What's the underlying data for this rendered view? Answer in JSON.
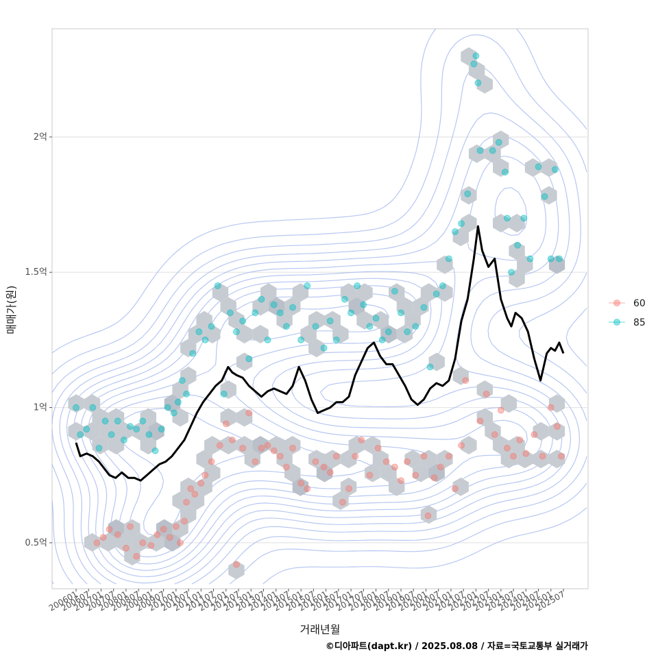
{
  "chart_data": {
    "type": "scatter",
    "xlabel": "거래년월",
    "ylabel": "매매가(원)",
    "caption": "©디아파트(dapt.kr) / 2025.08.08 / 자료=국토교통부 실거래가",
    "x_range": [
      "2006-01",
      "2025-07"
    ],
    "ylim": [
      0.33,
      2.4
    ],
    "grid": true,
    "legend_position": "right",
    "y_ticks": [
      {
        "value": 0.5,
        "label": "0.5억"
      },
      {
        "value": 1.0,
        "label": "1억"
      },
      {
        "value": 1.5,
        "label": "1.5억"
      },
      {
        "value": 2.0,
        "label": "2억"
      }
    ],
    "x_ticks": [
      "200601",
      "200607",
      "200701",
      "200707",
      "200801",
      "200807",
      "200901",
      "200907",
      "201001",
      "201007",
      "201101",
      "201107",
      "201201",
      "201207",
      "201301",
      "201307",
      "201401",
      "201407",
      "201501",
      "201507",
      "201601",
      "201607",
      "201701",
      "201707",
      "201801",
      "201807",
      "201901",
      "201907",
      "202001",
      "202007",
      "202101",
      "202107",
      "202201",
      "202207",
      "202301",
      "202307",
      "202401",
      "202407",
      "202501",
      "202507"
    ],
    "series": [
      {
        "name": "60",
        "color": "#F8766D",
        "points": [
          [
            "2006-11",
            0.5
          ],
          [
            "2007-02",
            0.52
          ],
          [
            "2007-05",
            0.55
          ],
          [
            "2007-09",
            0.53
          ],
          [
            "2008-01",
            0.48
          ],
          [
            "2008-03",
            0.56
          ],
          [
            "2008-06",
            0.45
          ],
          [
            "2008-09",
            0.5
          ],
          [
            "2009-01",
            0.49
          ],
          [
            "2009-04",
            0.53
          ],
          [
            "2009-07",
            0.55
          ],
          [
            "2009-10",
            0.52
          ],
          [
            "2010-01",
            0.56
          ],
          [
            "2010-03",
            0.5
          ],
          [
            "2010-05",
            0.58
          ],
          [
            "2010-06",
            0.65
          ],
          [
            "2010-08",
            0.7
          ],
          [
            "2010-10",
            0.68
          ],
          [
            "2011-01",
            0.72
          ],
          [
            "2011-03",
            0.75
          ],
          [
            "2011-06",
            0.8
          ],
          [
            "2011-10",
            0.86
          ],
          [
            "2012-01",
            0.94
          ],
          [
            "2012-04",
            0.88
          ],
          [
            "2012-06",
            0.42
          ],
          [
            "2012-09",
            0.85
          ],
          [
            "2012-12",
            0.98
          ],
          [
            "2013-03",
            0.8
          ],
          [
            "2013-06",
            0.85
          ],
          [
            "2013-09",
            0.86
          ],
          [
            "2013-12",
            0.84
          ],
          [
            "2014-03",
            0.82
          ],
          [
            "2014-06",
            0.78
          ],
          [
            "2014-09",
            0.85
          ],
          [
            "2015-01",
            0.72
          ],
          [
            "2015-04",
            0.7
          ],
          [
            "2015-08",
            0.8
          ],
          [
            "2015-12",
            0.78
          ],
          [
            "2016-03",
            0.76
          ],
          [
            "2016-06",
            0.82
          ],
          [
            "2016-09",
            0.65
          ],
          [
            "2016-12",
            0.7
          ],
          [
            "2017-03",
            0.82
          ],
          [
            "2017-06",
            0.88
          ],
          [
            "2017-10",
            0.75
          ],
          [
            "2018-02",
            0.85
          ],
          [
            "2018-06",
            0.8
          ],
          [
            "2018-10",
            0.78
          ],
          [
            "2019-01",
            0.73
          ],
          [
            "2019-04",
            0.8
          ],
          [
            "2019-08",
            0.75
          ],
          [
            "2019-12",
            0.82
          ],
          [
            "2020-02",
            0.6
          ],
          [
            "2020-05",
            0.74
          ],
          [
            "2020-08",
            0.78
          ],
          [
            "2020-12",
            0.82
          ],
          [
            "2021-03",
            0.7
          ],
          [
            "2021-06",
            0.86
          ],
          [
            "2021-08",
            1.1
          ],
          [
            "2022-03",
            0.95
          ],
          [
            "2022-06",
            1.05
          ],
          [
            "2022-10",
            0.9
          ],
          [
            "2023-01",
            0.99
          ],
          [
            "2023-04",
            0.85
          ],
          [
            "2023-07",
            0.82
          ],
          [
            "2023-10",
            0.88
          ],
          [
            "2024-01",
            0.83
          ],
          [
            "2024-05",
            0.9
          ],
          [
            "2024-09",
            0.82
          ],
          [
            "2025-01",
            1.0
          ],
          [
            "2025-04",
            0.93
          ],
          [
            "2025-06",
            0.82
          ]
        ]
      },
      {
        "name": "85",
        "color": "#00BFC4",
        "points": [
          [
            "2006-01",
            1.0
          ],
          [
            "2006-03",
            0.9
          ],
          [
            "2006-06",
            0.92
          ],
          [
            "2006-09",
            1.0
          ],
          [
            "2006-12",
            0.85
          ],
          [
            "2007-03",
            0.95
          ],
          [
            "2007-06",
            0.9
          ],
          [
            "2007-09",
            0.95
          ],
          [
            "2007-12",
            0.88
          ],
          [
            "2008-03",
            0.93
          ],
          [
            "2008-06",
            0.92
          ],
          [
            "2008-09",
            0.95
          ],
          [
            "2008-12",
            0.9
          ],
          [
            "2009-03",
            0.84
          ],
          [
            "2009-06",
            0.92
          ],
          [
            "2009-09",
            1.0
          ],
          [
            "2009-12",
            0.98
          ],
          [
            "2010-02",
            1.02
          ],
          [
            "2010-04",
            1.1
          ],
          [
            "2010-06",
            1.05
          ],
          [
            "2010-09",
            1.2
          ],
          [
            "2010-12",
            1.28
          ],
          [
            "2011-03",
            1.25
          ],
          [
            "2011-06",
            1.3
          ],
          [
            "2011-09",
            1.45
          ],
          [
            "2011-12",
            1.05
          ],
          [
            "2012-03",
            1.35
          ],
          [
            "2012-06",
            1.28
          ],
          [
            "2012-09",
            1.32
          ],
          [
            "2012-12",
            1.18
          ],
          [
            "2013-03",
            1.35
          ],
          [
            "2013-06",
            1.4
          ],
          [
            "2013-09",
            1.25
          ],
          [
            "2013-12",
            1.38
          ],
          [
            "2014-03",
            1.35
          ],
          [
            "2014-06",
            1.3
          ],
          [
            "2014-09",
            1.37
          ],
          [
            "2015-01",
            1.25
          ],
          [
            "2015-04",
            1.45
          ],
          [
            "2015-08",
            1.3
          ],
          [
            "2015-12",
            1.22
          ],
          [
            "2016-03",
            1.32
          ],
          [
            "2016-06",
            1.25
          ],
          [
            "2016-10",
            1.4
          ],
          [
            "2017-01",
            1.35
          ],
          [
            "2017-04",
            1.45
          ],
          [
            "2017-07",
            1.38
          ],
          [
            "2017-10",
            1.3
          ],
          [
            "2018-01",
            1.33
          ],
          [
            "2018-04",
            1.25
          ],
          [
            "2018-07",
            1.28
          ],
          [
            "2018-10",
            1.43
          ],
          [
            "2019-01",
            1.35
          ],
          [
            "2019-04",
            1.28
          ],
          [
            "2019-08",
            1.3
          ],
          [
            "2019-12",
            1.37
          ],
          [
            "2020-03",
            1.15
          ],
          [
            "2020-06",
            1.42
          ],
          [
            "2020-09",
            1.45
          ],
          [
            "2020-12",
            1.55
          ],
          [
            "2021-03",
            1.65
          ],
          [
            "2021-06",
            1.68
          ],
          [
            "2021-09",
            1.79
          ],
          [
            "2021-12",
            2.27
          ],
          [
            "2022-01",
            2.3
          ],
          [
            "2022-02",
            2.2
          ],
          [
            "2022-03",
            1.95
          ],
          [
            "2022-09",
            1.95
          ],
          [
            "2022-12",
            1.98
          ],
          [
            "2023-03",
            1.87
          ],
          [
            "2023-04",
            1.7
          ],
          [
            "2023-06",
            1.5
          ],
          [
            "2023-09",
            1.6
          ],
          [
            "2023-12",
            1.7
          ],
          [
            "2024-03",
            1.55
          ],
          [
            "2024-07",
            1.89
          ],
          [
            "2024-10",
            1.78
          ],
          [
            "2025-01",
            1.55
          ],
          [
            "2025-03",
            1.88
          ],
          [
            "2025-05",
            1.55
          ]
        ]
      },
      {
        "name": "",
        "kind": "line",
        "color": "#000000",
        "points": [
          [
            "2006-01",
            0.87
          ],
          [
            "2006-03",
            0.82
          ],
          [
            "2006-06",
            0.83
          ],
          [
            "2006-09",
            0.82
          ],
          [
            "2006-12",
            0.8
          ],
          [
            "2007-02",
            0.78
          ],
          [
            "2007-05",
            0.75
          ],
          [
            "2007-08",
            0.74
          ],
          [
            "2007-11",
            0.76
          ],
          [
            "2008-02",
            0.74
          ],
          [
            "2008-05",
            0.74
          ],
          [
            "2008-08",
            0.73
          ],
          [
            "2008-11",
            0.75
          ],
          [
            "2009-02",
            0.77
          ],
          [
            "2009-05",
            0.79
          ],
          [
            "2009-08",
            0.8
          ],
          [
            "2009-11",
            0.82
          ],
          [
            "2010-02",
            0.85
          ],
          [
            "2010-05",
            0.88
          ],
          [
            "2010-08",
            0.93
          ],
          [
            "2010-11",
            0.98
          ],
          [
            "2011-02",
            1.02
          ],
          [
            "2011-05",
            1.05
          ],
          [
            "2011-08",
            1.08
          ],
          [
            "2011-11",
            1.1
          ],
          [
            "2012-02",
            1.15
          ],
          [
            "2012-04",
            1.13
          ],
          [
            "2012-06",
            1.12
          ],
          [
            "2012-09",
            1.11
          ],
          [
            "2012-12",
            1.08
          ],
          [
            "2013-03",
            1.06
          ],
          [
            "2013-06",
            1.04
          ],
          [
            "2013-09",
            1.06
          ],
          [
            "2013-12",
            1.07
          ],
          [
            "2014-03",
            1.06
          ],
          [
            "2014-06",
            1.05
          ],
          [
            "2014-09",
            1.08
          ],
          [
            "2014-12",
            1.15
          ],
          [
            "2015-03",
            1.1
          ],
          [
            "2015-06",
            1.03
          ],
          [
            "2015-09",
            0.98
          ],
          [
            "2015-12",
            0.99
          ],
          [
            "2016-03",
            1.0
          ],
          [
            "2016-06",
            1.02
          ],
          [
            "2016-09",
            1.02
          ],
          [
            "2016-12",
            1.04
          ],
          [
            "2017-03",
            1.12
          ],
          [
            "2017-06",
            1.17
          ],
          [
            "2017-09",
            1.22
          ],
          [
            "2017-12",
            1.24
          ],
          [
            "2018-03",
            1.19
          ],
          [
            "2018-06",
            1.16
          ],
          [
            "2018-09",
            1.16
          ],
          [
            "2018-12",
            1.12
          ],
          [
            "2019-03",
            1.08
          ],
          [
            "2019-06",
            1.03
          ],
          [
            "2019-09",
            1.01
          ],
          [
            "2019-12",
            1.03
          ],
          [
            "2020-03",
            1.07
          ],
          [
            "2020-06",
            1.09
          ],
          [
            "2020-09",
            1.08
          ],
          [
            "2020-12",
            1.1
          ],
          [
            "2021-03",
            1.18
          ],
          [
            "2021-06",
            1.32
          ],
          [
            "2021-09",
            1.4
          ],
          [
            "2021-12",
            1.55
          ],
          [
            "2022-02",
            1.67
          ],
          [
            "2022-04",
            1.58
          ],
          [
            "2022-07",
            1.52
          ],
          [
            "2022-10",
            1.55
          ],
          [
            "2023-01",
            1.4
          ],
          [
            "2023-04",
            1.33
          ],
          [
            "2023-06",
            1.3
          ],
          [
            "2023-08",
            1.35
          ],
          [
            "2023-11",
            1.33
          ],
          [
            "2024-02",
            1.28
          ],
          [
            "2024-05",
            1.18
          ],
          [
            "2024-08",
            1.1
          ],
          [
            "2024-11",
            1.2
          ],
          [
            "2025-01",
            1.22
          ],
          [
            "2025-03",
            1.21
          ],
          [
            "2025-05",
            1.24
          ],
          [
            "2025-07",
            1.2
          ]
        ]
      }
    ],
    "legend": [
      {
        "label": "60",
        "color": "#F8766D"
      },
      {
        "label": "85",
        "color": "#00BFC4"
      }
    ]
  }
}
